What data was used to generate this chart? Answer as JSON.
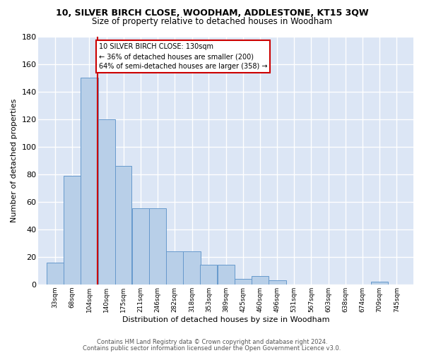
{
  "title": "10, SILVER BIRCH CLOSE, WOODHAM, ADDLESTONE, KT15 3QW",
  "subtitle": "Size of property relative to detached houses in Woodham",
  "xlabel": "Distribution of detached houses by size in Woodham",
  "ylabel": "Number of detached properties",
  "bar_labels": [
    "33sqm",
    "68sqm",
    "104sqm",
    "140sqm",
    "175sqm",
    "211sqm",
    "246sqm",
    "282sqm",
    "318sqm",
    "353sqm",
    "389sqm",
    "425sqm",
    "460sqm",
    "496sqm",
    "531sqm",
    "567sqm",
    "603sqm",
    "638sqm",
    "674sqm",
    "709sqm",
    "745sqm"
  ],
  "bar_values": [
    16,
    79,
    150,
    120,
    86,
    55,
    55,
    24,
    24,
    14,
    14,
    4,
    6,
    3,
    0,
    0,
    0,
    0,
    0,
    2,
    0
  ],
  "bar_color": "#b8cfe8",
  "bar_edge_color": "#6699cc",
  "bg_color": "#dce6f5",
  "grid_color": "#ffffff",
  "vline_color": "#cc0000",
  "annotation_line1": "10 SILVER BIRCH CLOSE: 130sqm",
  "annotation_line2": "← 36% of detached houses are smaller (200)",
  "annotation_line3": "64% of semi-detached houses are larger (358) →",
  "ylim": [
    0,
    180
  ],
  "yticks": [
    0,
    20,
    40,
    60,
    80,
    100,
    120,
    140,
    160,
    180
  ],
  "footer1": "Contains HM Land Registry data © Crown copyright and database right 2024.",
  "footer2": "Contains public sector information licensed under the Open Government Licence v3.0."
}
